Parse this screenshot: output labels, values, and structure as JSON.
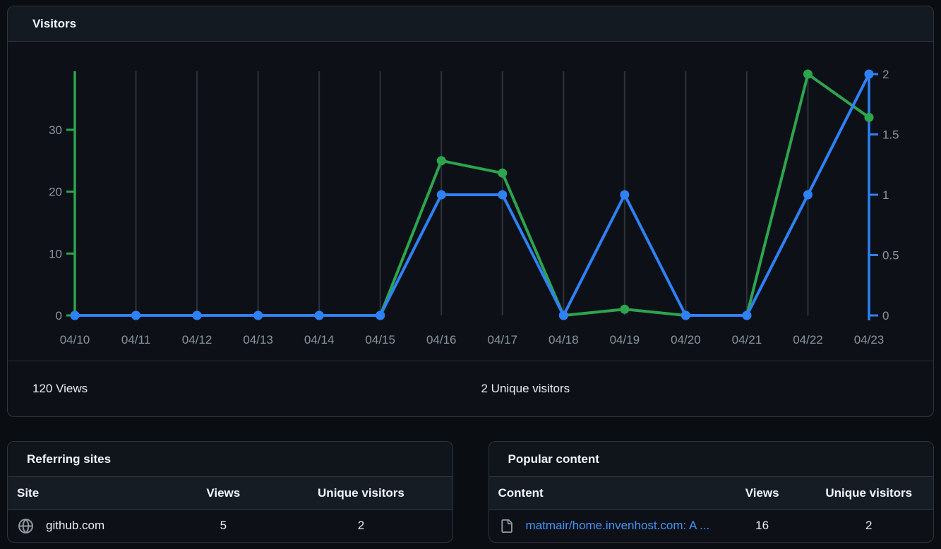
{
  "visitors": {
    "title": "Visitors",
    "footer": {
      "views_total": "120 Views",
      "unique_total": "2 Unique visitors"
    }
  },
  "chart_data": {
    "type": "line",
    "title": "Visitors",
    "categories": [
      "04/10",
      "04/11",
      "04/12",
      "04/13",
      "04/14",
      "04/15",
      "04/16",
      "04/17",
      "04/18",
      "04/19",
      "04/20",
      "04/21",
      "04/22",
      "04/23"
    ],
    "series": [
      {
        "name": "Views",
        "axis": "left",
        "color": "#2da44e",
        "values": [
          0,
          0,
          0,
          0,
          0,
          0,
          25,
          23,
          0,
          1,
          0,
          0,
          39,
          32
        ]
      },
      {
        "name": "Unique visitors",
        "axis": "right",
        "color": "#2f81f7",
        "values": [
          0,
          0,
          0,
          0,
          0,
          0,
          1,
          1,
          0,
          1,
          0,
          0,
          1,
          2
        ]
      }
    ],
    "left_axis": {
      "ticks": [
        0,
        10,
        20,
        30
      ],
      "max": 39,
      "color": "#2da44e",
      "label_color": "#8b949e"
    },
    "right_axis": {
      "ticks": [
        0,
        0.5,
        1,
        1.5,
        2
      ],
      "max": 2,
      "color": "#2f81f7",
      "label_color": "#8b949e"
    },
    "grid": "vertical",
    "gridline_color": "#2d333b",
    "legend": "none"
  },
  "referring_sites": {
    "title": "Referring sites",
    "columns": [
      "Site",
      "Views",
      "Unique visitors"
    ],
    "rows": [
      {
        "site": "github.com",
        "views": "5",
        "unique": "2",
        "icon": "globe-icon"
      }
    ]
  },
  "popular_content": {
    "title": "Popular content",
    "columns": [
      "Content",
      "Views",
      "Unique visitors"
    ],
    "rows": [
      {
        "content": "matmair/home.invenhost.com: A ...",
        "views": "16",
        "unique": "2",
        "icon": "file-icon"
      }
    ]
  },
  "colors": {
    "views_green": "#2da44e",
    "unique_blue": "#2f81f7",
    "link_blue": "#4493f8"
  }
}
